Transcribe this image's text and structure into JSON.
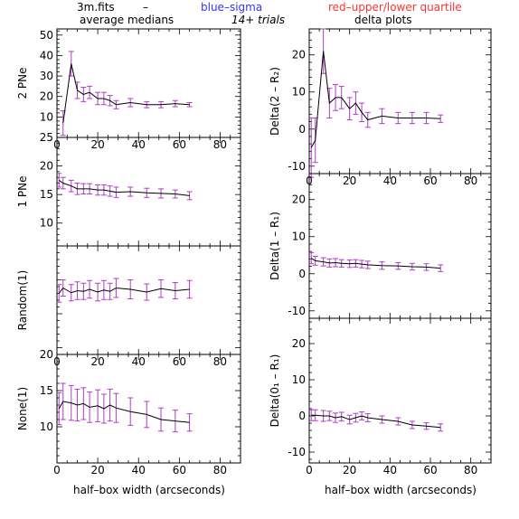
{
  "header": {
    "file": "3m.fits",
    "dash": "–",
    "blue_label": "blue–sigma",
    "red_label": "red–upper/lower quartile",
    "left_sub": "average medians",
    "center": "14+ trials",
    "right_sub": "delta plots"
  },
  "colors": {
    "blue": "#3333ff",
    "red": "#ff3333",
    "errbar": "#b03cc8",
    "line": "#000000"
  },
  "xlabel": "half–box width (arcseconds)",
  "chart_data": [
    {
      "id": "p1",
      "type": "line",
      "panel": "left-1",
      "ylabel": "2 PNe",
      "xlim": [
        0,
        90
      ],
      "ylim": [
        0,
        53
      ],
      "xticks": [
        0,
        20,
        40,
        60,
        80
      ],
      "yticks": [
        10,
        20,
        30,
        40,
        50
      ],
      "xtick_labels_shown": true,
      "grid": false,
      "x": [
        3,
        7,
        10,
        13,
        16,
        20,
        23,
        26,
        29,
        36,
        44,
        51,
        58,
        65
      ],
      "y": [
        7,
        36,
        23,
        21,
        22,
        19,
        19,
        18,
        16,
        17,
        16,
        16,
        16.5,
        16
      ],
      "err": [
        6,
        6,
        4,
        3.5,
        3,
        3,
        3,
        2.5,
        2,
        2,
        1.5,
        1.5,
        1.5,
        1
      ]
    },
    {
      "id": "p2",
      "type": "line",
      "panel": "left-2",
      "ylabel": "1 PNe",
      "xlim": [
        0,
        90
      ],
      "ylim": [
        6,
        25
      ],
      "xticks": [
        0,
        20,
        40,
        60,
        80
      ],
      "yticks": [
        10,
        15,
        20,
        25
      ],
      "xtick_labels_shown": false,
      "grid": false,
      "x": [
        1,
        3,
        7,
        10,
        13,
        16,
        20,
        23,
        26,
        29,
        36,
        44,
        51,
        58,
        65
      ],
      "y": [
        17.5,
        17,
        16.5,
        16,
        16,
        16,
        15.8,
        15.8,
        15.6,
        15.4,
        15.5,
        15.3,
        15.2,
        15.1,
        14.8
      ],
      "err": [
        1.2,
        1.0,
        1.0,
        1.0,
        0.9,
        0.9,
        0.9,
        0.9,
        0.9,
        0.9,
        0.8,
        0.8,
        0.8,
        0.7,
        0.7
      ]
    },
    {
      "id": "p3",
      "type": "line",
      "panel": "left-3",
      "ylabel": "Random(1)",
      "xlim": [
        0,
        90
      ],
      "ylim": [
        4,
        20
      ],
      "xticks": [
        0,
        20,
        40,
        60,
        80
      ],
      "yticks": [],
      "xtick_labels_shown": true,
      "grid": false,
      "x": [
        1,
        3,
        7,
        10,
        13,
        16,
        20,
        23,
        26,
        29,
        36,
        44,
        51,
        58,
        65
      ],
      "y": [
        13,
        13.8,
        13.1,
        13.4,
        13.3,
        13.6,
        13.2,
        13.5,
        13.3,
        13.8,
        13.6,
        13.2,
        13.7,
        13.4,
        13.6
      ],
      "err": [
        1.3,
        1.2,
        1.2,
        1.3,
        1.2,
        1.3,
        1.3,
        1.4,
        1.2,
        1.4,
        1.4,
        1.2,
        1.3,
        1.2,
        1.3
      ]
    },
    {
      "id": "p4",
      "type": "line",
      "panel": "left-4",
      "ylabel": "None(1)",
      "xlim": [
        0,
        90
      ],
      "ylim": [
        5,
        20
      ],
      "xticks": [
        0,
        20,
        40,
        60,
        80
      ],
      "yticks": [
        10,
        15,
        20
      ],
      "xtick_labels_shown": true,
      "grid": false,
      "x": [
        1,
        3,
        7,
        10,
        13,
        16,
        20,
        23,
        26,
        29,
        36,
        44,
        51,
        58,
        65
      ],
      "y": [
        12.5,
        13.5,
        13.3,
        13.0,
        13.2,
        12.7,
        12.9,
        12.5,
        13.0,
        12.6,
        12.1,
        11.7,
        11.0,
        10.8,
        10.6
      ],
      "err": [
        2.2,
        2.5,
        2.4,
        2.2,
        2.2,
        2.1,
        2.2,
        2.0,
        2.2,
        2.0,
        1.9,
        1.8,
        1.6,
        1.5,
        1.2
      ]
    },
    {
      "id": "p5",
      "type": "line",
      "panel": "right-1",
      "ylabel": "Delta(2 – R₂)",
      "xlim": [
        0,
        90
      ],
      "ylim": [
        -12,
        27
      ],
      "xticks": [
        0,
        20,
        40,
        60,
        80
      ],
      "yticks": [
        -10,
        0,
        10,
        20
      ],
      "xtick_labels_shown": true,
      "grid": false,
      "x": [
        1,
        3,
        7,
        10,
        13,
        16,
        20,
        23,
        26,
        29,
        36,
        44,
        51,
        58,
        65
      ],
      "y": [
        -5,
        -3,
        21,
        7,
        8.5,
        8.5,
        5.5,
        7,
        4.5,
        2.5,
        3.5,
        3,
        3,
        3,
        2.8
      ],
      "err": [
        8,
        6,
        6,
        4,
        3.5,
        3,
        3,
        3,
        2.5,
        2,
        2,
        1.5,
        1.5,
        1.5,
        1
      ]
    },
    {
      "id": "p6",
      "type": "line",
      "panel": "right-2",
      "ylabel": "Delta(1 – R₁)",
      "xlim": [
        0,
        90
      ],
      "ylim": [
        -12,
        27
      ],
      "xticks": [
        0,
        20,
        40,
        60,
        80
      ],
      "yticks": [
        -10,
        0,
        10,
        20
      ],
      "xtick_labels_shown": false,
      "grid": false,
      "x": [
        1,
        3,
        7,
        10,
        13,
        16,
        20,
        23,
        26,
        29,
        36,
        44,
        51,
        58,
        65
      ],
      "y": [
        4.2,
        3.5,
        3.2,
        2.9,
        3.0,
        2.8,
        2.7,
        2.8,
        2.6,
        2.4,
        2.2,
        2.1,
        1.9,
        1.8,
        1.5
      ],
      "err": [
        1.5,
        1.2,
        1.1,
        1.1,
        1.1,
        1.0,
        1.0,
        1.0,
        1.0,
        1.0,
        1.0,
        0.9,
        0.9,
        0.9,
        0.9
      ]
    },
    {
      "id": "p7",
      "type": "line",
      "panel": "right-3",
      "ylabel": "Delta(0₁ – R₁)",
      "xlim": [
        0,
        90
      ],
      "ylim": [
        -13,
        27
      ],
      "xticks": [
        0,
        20,
        40,
        60,
        80
      ],
      "yticks": [
        -10,
        0,
        10,
        20
      ],
      "xtick_labels_shown": true,
      "grid": false,
      "x": [
        1,
        3,
        7,
        10,
        13,
        16,
        20,
        23,
        26,
        29,
        36,
        44,
        51,
        58,
        65
      ],
      "y": [
        0.2,
        0.2,
        0.0,
        0.0,
        -0.5,
        -0.2,
        -1.0,
        -0.5,
        0.0,
        -0.5,
        -1.0,
        -1.5,
        -2.5,
        -2.8,
        -3.2
      ],
      "err": [
        1.5,
        1.5,
        1.5,
        1.3,
        1.3,
        1.2,
        1.2,
        1.2,
        1.1,
        1.1,
        1.0,
        1.0,
        1.0,
        0.9,
        1.0
      ]
    }
  ]
}
